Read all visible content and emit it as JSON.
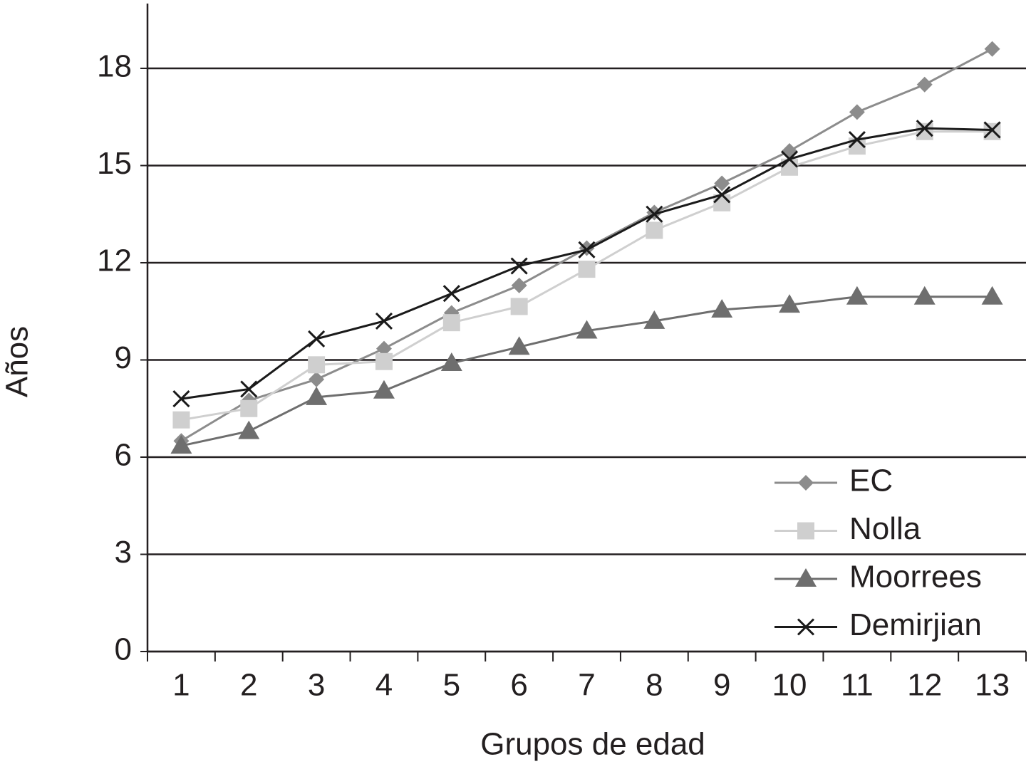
{
  "chart_data": {
    "type": "line",
    "x_label": "Grupos de edad",
    "y_label": "Años",
    "categories": [
      "1",
      "2",
      "3",
      "4",
      "5",
      "6",
      "7",
      "8",
      "9",
      "10",
      "11",
      "12",
      "13"
    ],
    "series": [
      {
        "name": "EC",
        "color": "#8c8c8c",
        "marker": "diamond",
        "values": [
          6.5,
          7.75,
          8.4,
          9.35,
          10.45,
          11.3,
          12.45,
          13.55,
          14.45,
          15.45,
          16.65,
          17.5,
          18.6
        ]
      },
      {
        "name": "Nolla",
        "color": "#cfcfcf",
        "marker": "square",
        "values": [
          7.15,
          7.5,
          8.85,
          8.95,
          10.15,
          10.65,
          11.8,
          13.0,
          13.85,
          14.95,
          15.6,
          16.05,
          16.05
        ]
      },
      {
        "name": "Moorrees",
        "color": "#6e6e6e",
        "marker": "triangle",
        "values": [
          6.35,
          6.8,
          7.85,
          8.05,
          8.9,
          9.4,
          9.9,
          10.2,
          10.55,
          10.7,
          10.95,
          10.95,
          10.95
        ]
      },
      {
        "name": "Demirjian",
        "color": "#1a1a1a",
        "marker": "x",
        "values": [
          7.8,
          8.1,
          9.65,
          10.2,
          11.05,
          11.9,
          12.4,
          13.5,
          14.1,
          15.2,
          15.8,
          16.15,
          16.1
        ]
      }
    ],
    "ylim": [
      0,
      20
    ],
    "yticks": [
      0,
      3,
      6,
      9,
      12,
      15,
      18
    ],
    "grid": true,
    "legend": "lower right"
  }
}
